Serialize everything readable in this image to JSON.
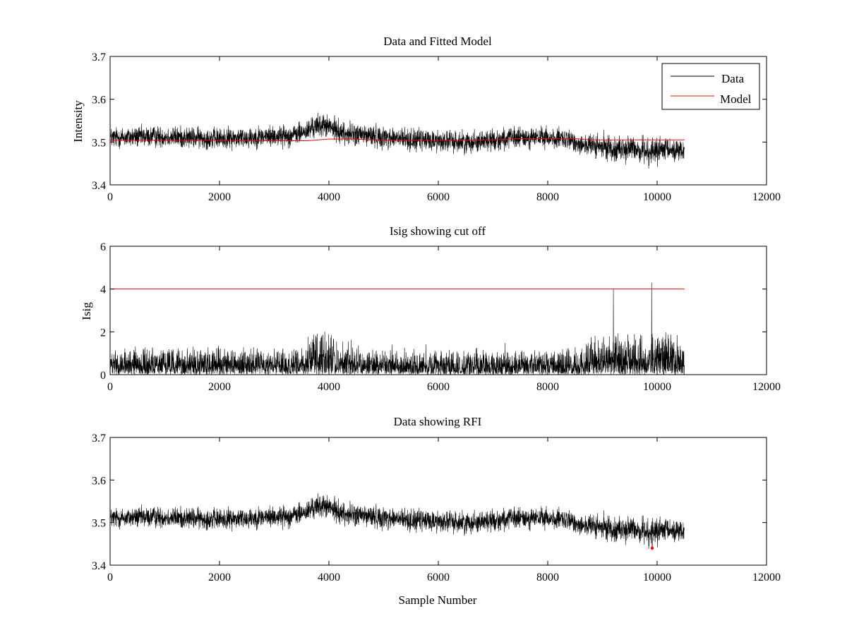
{
  "figure": {
    "background": "#ffffff"
  },
  "colors": {
    "data": "#000000",
    "model": "#ff0000",
    "rfi": "#ff0000",
    "axes": "#000000"
  },
  "chart_data": [
    {
      "type": "line",
      "title": "Data and Fitted Model",
      "xlabel": "",
      "ylabel": "Intensity",
      "xlim": [
        0,
        12000
      ],
      "ylim": [
        3.4,
        3.7
      ],
      "xticks": [
        0,
        2000,
        4000,
        6000,
        8000,
        10000,
        12000
      ],
      "yticks": [
        3.4,
        3.5,
        3.6,
        3.7
      ],
      "xtick_labels": [
        "0",
        "2000",
        "4000",
        "6000",
        "8000",
        "10000",
        "12000"
      ],
      "ytick_labels": [
        "3.4",
        "3.5",
        "3.6",
        "3.7"
      ],
      "grid": false,
      "legend": {
        "placement": "top-right",
        "entries": [
          "Data",
          "Model"
        ]
      },
      "series": [
        {
          "name": "Data",
          "color": "#000000",
          "noisy": true,
          "n_samples": 10500,
          "baseline": {
            "x": [
              0,
              500,
              1000,
              1500,
              2000,
              2500,
              3000,
              3300,
              3600,
              3700,
              3900,
              4100,
              4300,
              4500,
              4700,
              5000,
              5500,
              6000,
              6500,
              7000,
              7500,
              8000,
              8300,
              8500,
              8800,
              9000,
              9300,
              9600,
              9900,
              10200,
              10500
            ],
            "y": [
              3.51,
              3.512,
              3.513,
              3.51,
              3.508,
              3.511,
              3.514,
              3.515,
              3.525,
              3.535,
              3.54,
              3.53,
              3.52,
              3.518,
              3.515,
              3.512,
              3.505,
              3.503,
              3.5,
              3.505,
              3.51,
              3.51,
              3.505,
              3.5,
              3.49,
              3.488,
              3.485,
              3.483,
              3.478,
              3.48,
              3.482
            ]
          },
          "noise_amplitude": [
            [
              0,
              0.012
            ],
            [
              3600,
              0.012
            ],
            [
              3700,
              0.013
            ],
            [
              8600,
              0.012
            ],
            [
              8700,
              0.014
            ],
            [
              10500,
              0.015
            ]
          ]
        },
        {
          "name": "Model",
          "color": "#ff0000",
          "x": [
            0,
            1000,
            2000,
            3000,
            3600,
            4000,
            4500,
            5000,
            6000,
            7000,
            7500,
            8000,
            8500,
            8800,
            9500,
            10500
          ],
          "y": [
            3.504,
            3.504,
            3.504,
            3.503,
            3.503,
            3.507,
            3.507,
            3.504,
            3.504,
            3.505,
            3.508,
            3.508,
            3.508,
            3.505,
            3.505,
            3.505
          ]
        }
      ]
    },
    {
      "type": "line",
      "title": "Isig showing cut off",
      "xlabel": "",
      "ylabel": "Isig",
      "xlim": [
        0,
        12000
      ],
      "ylim": [
        0,
        6
      ],
      "xticks": [
        0,
        2000,
        4000,
        6000,
        8000,
        10000,
        12000
      ],
      "yticks": [
        0,
        2,
        4,
        6
      ],
      "xtick_labels": [
        "0",
        "2000",
        "4000",
        "6000",
        "8000",
        "10000",
        "12000"
      ],
      "ytick_labels": [
        "0",
        "2",
        "4",
        "6"
      ],
      "grid": false,
      "series": [
        {
          "color": "#000000",
          "noisy": true,
          "n_samples": 10500,
          "magnitude_segments": [
            [
              0,
              3600,
              0.85
            ],
            [
              3600,
              4100,
              1.35
            ],
            [
              4100,
              4600,
              1.05
            ],
            [
              4600,
              8700,
              0.8
            ],
            [
              8700,
              10500,
              1.25
            ]
          ],
          "spikes": [
            [
              9200,
              4.0
            ],
            [
              9900,
              4.3
            ]
          ]
        },
        {
          "color": "#ff0000",
          "x": [
            0,
            10500
          ],
          "y": [
            4,
            4
          ]
        }
      ]
    },
    {
      "type": "line",
      "title": "Data showing RFI",
      "xlabel": "Sample Number",
      "ylabel": "",
      "xlim": [
        0,
        12000
      ],
      "ylim": [
        3.4,
        3.7
      ],
      "xticks": [
        0,
        2000,
        4000,
        6000,
        8000,
        10000,
        12000
      ],
      "yticks": [
        3.4,
        3.5,
        3.6,
        3.7
      ],
      "xtick_labels": [
        "0",
        "2000",
        "4000",
        "6000",
        "8000",
        "10000",
        "12000"
      ],
      "ytick_labels": [
        "3.4",
        "3.5",
        "3.6",
        "3.7"
      ],
      "grid": false,
      "series": [
        {
          "color": "#000000",
          "noisy": true,
          "same_as_panel_1_data": true
        },
        {
          "color": "#ff0000",
          "marker": "dot",
          "x": [
            9910
          ],
          "y": [
            3.44
          ]
        }
      ]
    }
  ]
}
